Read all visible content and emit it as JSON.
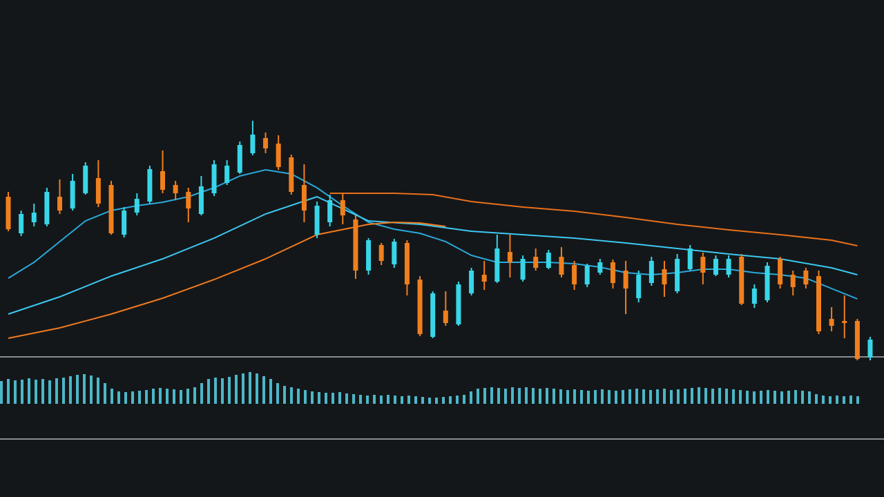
{
  "chart_data": [
    {
      "type": "candlestick",
      "up_color": "#38d6e8",
      "down_color": "#f07f1e",
      "xlim": [
        0,
        67
      ],
      "ylim": [
        0,
        200
      ],
      "open": [
        122.5,
        96,
        104,
        102.5,
        122.5,
        114,
        125,
        136,
        131,
        95,
        111,
        119,
        141,
        131,
        126,
        110,
        125,
        132.5,
        140,
        154,
        165,
        161,
        151,
        131,
        95,
        104,
        120,
        106,
        69,
        87.5,
        73.5,
        89,
        62.5,
        21,
        40,
        30,
        52.5,
        66,
        61,
        82.5,
        62.5,
        79,
        71,
        79,
        73,
        59,
        67.5,
        75,
        69,
        49,
        60,
        70,
        54,
        70,
        79,
        66,
        66,
        79,
        45,
        47.5,
        77.5,
        66,
        69,
        65,
        34,
        32.5,
        32.5,
        6
      ],
      "high": [
        126,
        112.5,
        117.5,
        129,
        135,
        139,
        147.5,
        149,
        134,
        115,
        125,
        145,
        156,
        134,
        129,
        137.5,
        149,
        149,
        162.5,
        177.5,
        169,
        167,
        153,
        146,
        119,
        124,
        125,
        109,
        92.5,
        89,
        92,
        91,
        65,
        54,
        54,
        61,
        71,
        76,
        95,
        95,
        80,
        85,
        84,
        86,
        76,
        74,
        77.5,
        77,
        76,
        69,
        79,
        76,
        81,
        87.5,
        82,
        80,
        80,
        81,
        59,
        75,
        79,
        69,
        71,
        69,
        42.5,
        51,
        34,
        21
      ],
      "low": [
        97.5,
        94,
        101,
        101,
        110,
        112.5,
        124,
        115,
        95,
        93,
        109,
        117.5,
        125,
        120,
        104,
        109,
        123,
        131,
        139,
        152.5,
        154,
        142,
        124,
        104,
        92.5,
        101,
        102.5,
        63,
        66,
        73,
        71,
        51,
        21.5,
        20,
        29,
        29,
        51,
        55,
        60,
        64,
        61,
        69,
        70,
        64,
        55,
        57,
        66,
        56,
        37.5,
        46,
        58,
        50,
        52.5,
        69,
        59,
        65,
        64,
        44,
        42,
        46,
        56,
        51,
        56,
        23,
        25,
        20,
        4,
        4
      ],
      "close": [
        99,
        110,
        111,
        126,
        112.5,
        134,
        145,
        117.5,
        96,
        112.5,
        121,
        142.5,
        127.5,
        125,
        114,
        130,
        146,
        145,
        160,
        167.5,
        157.5,
        144,
        126,
        112.5,
        116,
        120,
        109,
        69,
        91,
        76,
        90,
        59,
        23,
        52.5,
        31,
        59,
        69,
        61,
        85,
        75,
        77.5,
        71,
        82,
        66,
        59,
        72.5,
        75,
        60,
        56,
        66,
        76,
        59,
        77.5,
        85,
        67.5,
        77.5,
        77.5,
        45,
        56,
        72.5,
        59,
        57,
        59,
        25,
        29,
        31,
        5,
        19
      ],
      "lines": [
        {
          "color": "#2aa9dc",
          "x": [
            0,
            2,
            4,
            6,
            8,
            10,
            12,
            14,
            16,
            18,
            20,
            22,
            24,
            26,
            28,
            30,
            32,
            34,
            36,
            38,
            40,
            42,
            44,
            46,
            48,
            50,
            52,
            54,
            56,
            58,
            60,
            62,
            64,
            66
          ],
          "values": [
            63.5,
            75,
            90,
            105,
            112.5,
            116,
            118.5,
            122.5,
            129,
            137.5,
            142,
            139,
            129,
            116,
            104,
            99,
            96,
            90,
            80,
            75,
            75,
            75,
            74,
            71.5,
            67.5,
            66,
            67.5,
            70,
            70,
            67.5,
            66,
            63.5,
            56,
            48.5
          ]
        },
        {
          "color": "#3cc8f2",
          "x": [
            0,
            4,
            8,
            12,
            16,
            20,
            24,
            28,
            32,
            36,
            40,
            44,
            48,
            52,
            56,
            60,
            64,
            66
          ],
          "values": [
            37.5,
            50,
            65,
            77.5,
            92.5,
            110,
            122.5,
            105,
            102.5,
            97.5,
            95,
            92.5,
            89,
            85,
            81,
            77.5,
            71,
            66
          ]
        },
        {
          "color": "#f07a1f",
          "x": [
            0,
            4,
            8,
            12,
            16,
            20,
            24,
            28,
            30,
            32,
            34
          ],
          "values": [
            20,
            27.5,
            37.5,
            49,
            62.5,
            77.5,
            95,
            102.5,
            104,
            103.5,
            101
          ]
        },
        {
          "color": "#e8701c",
          "x": [
            25,
            30,
            33,
            36,
            40,
            44,
            48,
            52,
            56,
            60,
            64,
            66
          ],
          "values": [
            125,
            125,
            124,
            119,
            115,
            112,
            107.5,
            102.5,
            98.5,
            95,
            91,
            87
          ]
        }
      ]
    },
    {
      "type": "bar",
      "color": "#4cb7c9",
      "ylim": [
        0,
        60
      ],
      "values": [
        33,
        36,
        34,
        35,
        37,
        35,
        36,
        34,
        37,
        38,
        40,
        42,
        43,
        41,
        38,
        30,
        22,
        18,
        17,
        18,
        19,
        20,
        22,
        23,
        22,
        21,
        20,
        22,
        24,
        30,
        36,
        38,
        37,
        39,
        42,
        44,
        46,
        44,
        40,
        36,
        30,
        26,
        24,
        22,
        20,
        18,
        17,
        16,
        16,
        17,
        15,
        14,
        13,
        12,
        13,
        12,
        13,
        12,
        11,
        12,
        11,
        10,
        9,
        9,
        10,
        11,
        12,
        13,
        18,
        22,
        23,
        24,
        23,
        22,
        24,
        23,
        24,
        23,
        22,
        23,
        22,
        21,
        20,
        21,
        20,
        19,
        20,
        21,
        20,
        19,
        20,
        21,
        22,
        21,
        20,
        21,
        22,
        20,
        21,
        22,
        23,
        24,
        23,
        22,
        23,
        22,
        21,
        20,
        19,
        18,
        19,
        20,
        19,
        18,
        19,
        20,
        19,
        18,
        14,
        12,
        11,
        12,
        11,
        12,
        11
      ]
    }
  ]
}
